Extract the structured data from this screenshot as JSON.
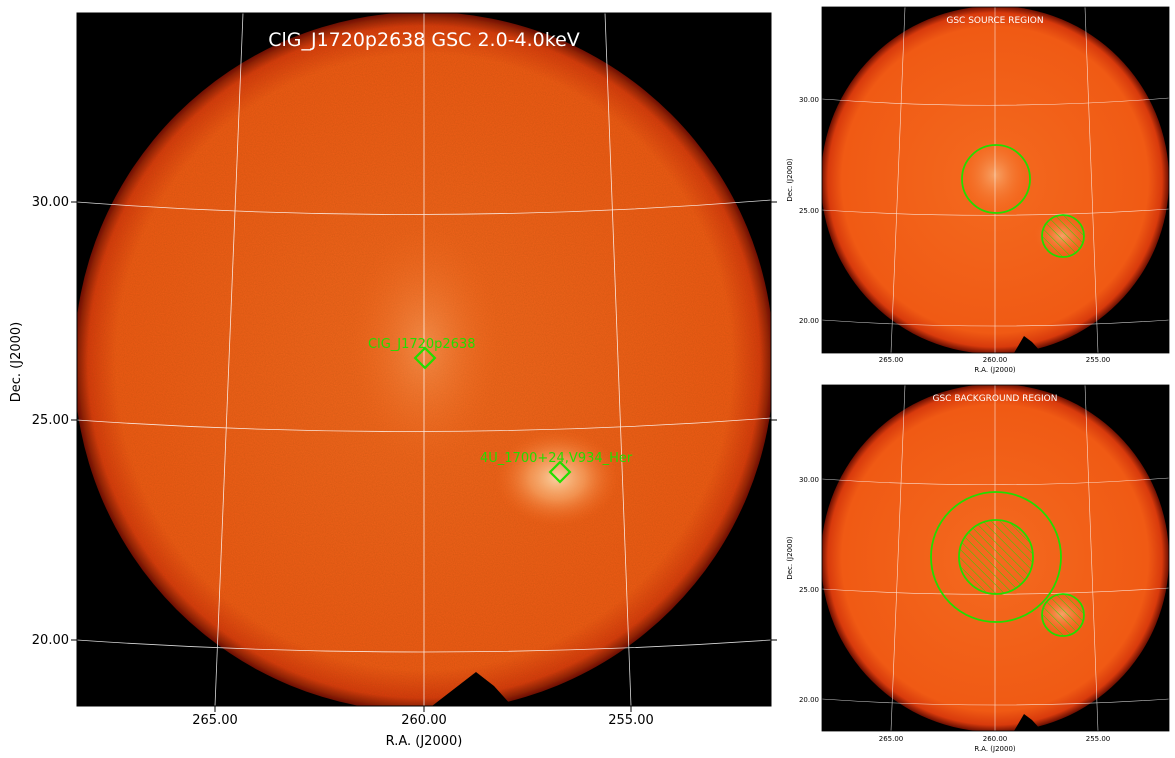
{
  "main": {
    "title": "ClG_J1720p2638 GSC 2.0-4.0keV",
    "xlabel": "R.A. (J2000)",
    "ylabel": "Dec. (J2000)",
    "xticks": [
      "265.00",
      "260.00",
      "255.00"
    ],
    "yticks": [
      "30.00",
      "25.00",
      "20.00"
    ],
    "markers": [
      {
        "label": "ClG_J1720p2638"
      },
      {
        "label": "4U_1700+24,V934_Her"
      }
    ]
  },
  "source_panel": {
    "title": "GSC SOURCE REGION",
    "xlabel": "R.A. (J2000)",
    "ylabel": "Dec. (J2000)",
    "xticks": [
      "265.00",
      "260.00",
      "255.00"
    ],
    "yticks": [
      "30.00",
      "25.00",
      "20.00"
    ]
  },
  "background_panel": {
    "title": "GSC BACKGROUND REGION",
    "xlabel": "R.A. (J2000)",
    "ylabel": "Dec. (J2000)",
    "xticks": [
      "265.00",
      "260.00",
      "255.00"
    ],
    "yticks": [
      "30.00",
      "25.00",
      "20.00"
    ]
  },
  "colors": {
    "image_bg": "#000000",
    "disk": "#f25d17",
    "marker": "#22dd00",
    "grid": "#ffffff"
  }
}
